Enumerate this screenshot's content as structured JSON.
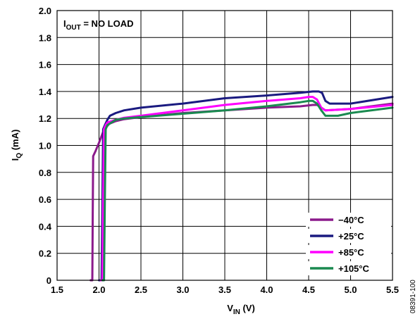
{
  "chart_data": {
    "type": "line",
    "title": "",
    "xlabel": {
      "main": "V",
      "sub": "IN",
      "unit": " (V)"
    },
    "ylabel": {
      "main": "I",
      "sub": "Q",
      "unit": " (mA)"
    },
    "xlim": [
      1.5,
      5.5
    ],
    "ylim": [
      0,
      2.0
    ],
    "x_ticks": [
      "1.5",
      "2.0",
      "2.5",
      "3.0",
      "3.5",
      "4.0",
      "4.5",
      "5.0",
      "5.5"
    ],
    "y_ticks": [
      "0",
      "0.2",
      "0.4",
      "0.6",
      "0.8",
      "1.0",
      "1.2",
      "1.4",
      "1.6",
      "1.8",
      "2.0"
    ],
    "grid": true,
    "annotation": {
      "main": "I",
      "sub": "OUT",
      "rest": " = NO LOAD"
    },
    "legend_position": "bottom-right",
    "figure_id": "08391-100",
    "series": [
      {
        "name": "−40°C",
        "color": "#8b1a8b",
        "x": [
          1.9,
          1.92,
          1.925,
          1.93,
          1.96,
          2.0,
          2.03,
          2.05,
          2.08,
          2.12,
          2.2,
          2.3,
          2.5,
          3.0,
          3.5,
          4.0,
          4.4,
          4.55,
          4.6,
          4.65,
          4.7,
          5.0,
          5.5
        ],
        "y": [
          0,
          0,
          0.5,
          0.92,
          0.96,
          1.02,
          1.07,
          1.1,
          1.13,
          1.16,
          1.18,
          1.195,
          1.21,
          1.24,
          1.26,
          1.28,
          1.29,
          1.3,
          1.3,
          1.28,
          1.26,
          1.27,
          1.31
        ]
      },
      {
        "name": "+25°C",
        "color": "#1a1a80",
        "x": [
          2.0,
          2.03,
          2.04,
          2.05,
          2.07,
          2.1,
          2.13,
          2.2,
          2.3,
          2.5,
          3.0,
          3.5,
          4.0,
          4.4,
          4.55,
          4.62,
          4.66,
          4.7,
          4.75,
          5.0,
          5.5
        ],
        "y": [
          0,
          0,
          0.6,
          1.12,
          1.15,
          1.19,
          1.22,
          1.24,
          1.26,
          1.28,
          1.31,
          1.35,
          1.37,
          1.39,
          1.4,
          1.4,
          1.39,
          1.33,
          1.31,
          1.31,
          1.36
        ]
      },
      {
        "name": "+85°C",
        "color": "#ff00ff",
        "x": [
          2.02,
          2.04,
          2.05,
          2.06,
          2.08,
          2.1,
          2.2,
          2.3,
          2.5,
          3.0,
          3.5,
          4.0,
          4.4,
          4.5,
          4.55,
          4.6,
          4.65,
          4.7,
          5.0,
          5.5
        ],
        "y": [
          0,
          0,
          0.6,
          1.12,
          1.15,
          1.17,
          1.19,
          1.205,
          1.22,
          1.26,
          1.3,
          1.33,
          1.35,
          1.36,
          1.36,
          1.34,
          1.28,
          1.26,
          1.27,
          1.3
        ]
      },
      {
        "name": "+105°C",
        "color": "#1a8a50",
        "x": [
          2.04,
          2.06,
          2.07,
          2.08,
          2.1,
          2.15,
          2.2,
          2.3,
          2.5,
          3.0,
          3.5,
          4.0,
          4.4,
          4.5,
          4.55,
          4.6,
          4.65,
          4.7,
          4.85,
          5.0,
          5.5
        ],
        "y": [
          0,
          0,
          0.6,
          1.12,
          1.15,
          1.17,
          1.19,
          1.2,
          1.21,
          1.235,
          1.26,
          1.29,
          1.32,
          1.33,
          1.33,
          1.31,
          1.26,
          1.22,
          1.22,
          1.24,
          1.28
        ]
      }
    ]
  }
}
